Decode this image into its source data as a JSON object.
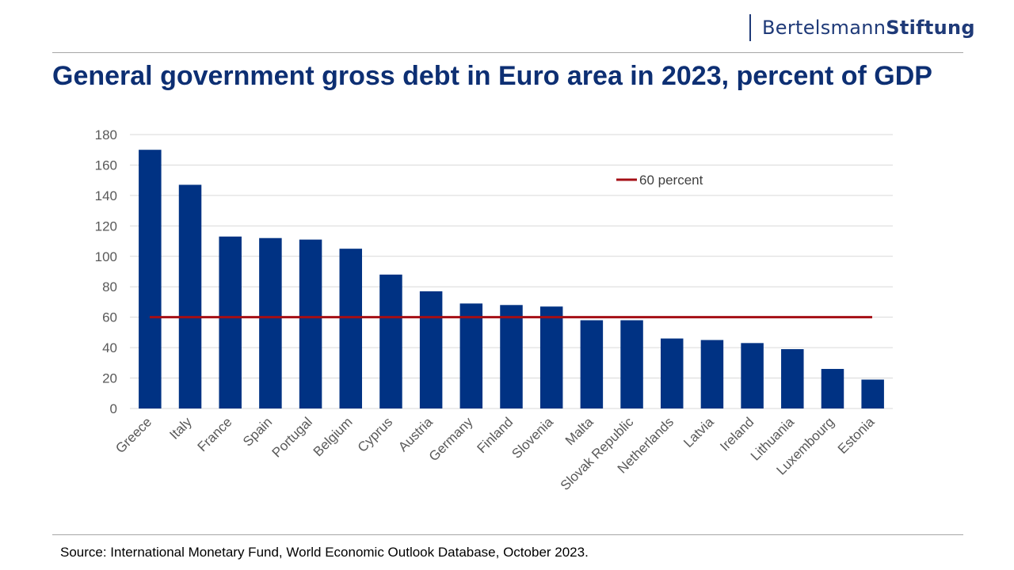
{
  "brand": {
    "name_regular": "Bertelsmann",
    "name_bold": "Stiftung"
  },
  "title": "General government gross debt in Euro area in 2023, percent of GDP",
  "source": "Source: International Monetary Fund, World Economic Outlook Database, October 2023.",
  "colors": {
    "bar": "#003283",
    "reference_line": "#a50f15",
    "title": "#0d2f73",
    "grid": "#d9d9d9"
  },
  "chart_data": {
    "type": "bar",
    "categories": [
      "Greece",
      "Italy",
      "France",
      "Spain",
      "Portugal",
      "Belgium",
      "Cyprus",
      "Austria",
      "Germany",
      "Finland",
      "Slovenia",
      "Malta",
      "Slovak Republic",
      "Netherlands",
      "Latvia",
      "Ireland",
      "Lithuania",
      "Luxembourg",
      "Estonia"
    ],
    "values": [
      170,
      147,
      113,
      112,
      111,
      105,
      88,
      77,
      69,
      68,
      67,
      58,
      58,
      46,
      45,
      43,
      39,
      26,
      19
    ],
    "ylim": [
      0,
      180
    ],
    "yticks": [
      0,
      20,
      40,
      60,
      80,
      100,
      120,
      140,
      160,
      180
    ],
    "reference_line": {
      "name": "60 percent",
      "value": 60
    },
    "legend": "top-right",
    "grid": true,
    "title": "General government gross debt in Euro area in 2023, percent of GDP",
    "xlabel": "",
    "ylabel": ""
  }
}
